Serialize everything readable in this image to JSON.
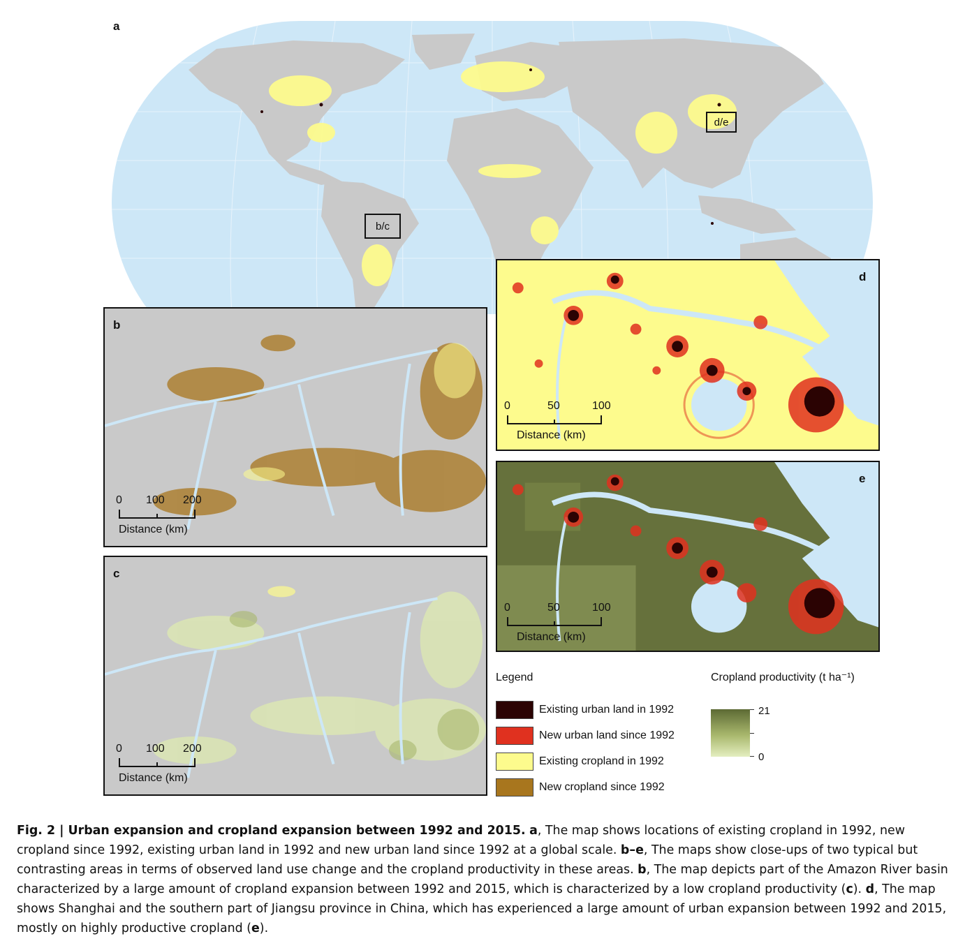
{
  "panels": {
    "a": {
      "label": "a",
      "region_boxes": [
        "d/e",
        "b/c"
      ]
    },
    "b": {
      "label": "b",
      "scale": {
        "ticks": [
          "0",
          "100",
          "200"
        ],
        "title": "Distance (km)"
      }
    },
    "c": {
      "label": "c",
      "scale": {
        "ticks": [
          "0",
          "100",
          "200"
        ],
        "title": "Distance (km)"
      }
    },
    "d": {
      "label": "d",
      "scale": {
        "ticks": [
          "0",
          "50",
          "100"
        ],
        "title": "Distance (km)"
      }
    },
    "e": {
      "label": "e",
      "scale": {
        "ticks": [
          "0",
          "50",
          "100"
        ],
        "title": "Distance (km)"
      }
    }
  },
  "legend": {
    "title": "Legend",
    "items": [
      {
        "label": "Existing urban land in 1992",
        "color": "#2b0303"
      },
      {
        "label": "New urban land since 1992",
        "color": "#e0311f"
      },
      {
        "label": "Existing cropland in 1992",
        "color": "#fdfb8d"
      },
      {
        "label": "New cropland since 1992",
        "color": "#a8761e"
      }
    ]
  },
  "productivity": {
    "title": "Cropland productivity (t ha⁻¹)",
    "max": "21",
    "min": "0"
  },
  "colors": {
    "ocean": "#cde7f7",
    "land": "#c9c9c9",
    "cropland": "#fdfb8d",
    "new_cropland": "#a8761e",
    "urban_old": "#2b0303",
    "urban_new": "#e0311f",
    "prod_high": "#5d6a34",
    "prod_low": "#e4eec0"
  },
  "caption": {
    "fig_label": "Fig. 2 | Urban expansion and cropland expansion between 1992 and 2015.",
    "a_key": "a",
    "a_text": ", The map shows locations of existing cropland in 1992, new cropland since 1992, existing urban land in 1992 and new urban land since 1992 at a global scale.",
    "be_key": "b–e",
    "be_text": ", The maps show close-ups of two typical but contrasting areas in terms of observed land use change and the cropland productivity in these areas.",
    "b_key": "b",
    "b_text": ", The map depicts part of the Amazon River basin characterized by a large amount of cropland expansion between 1992 and 2015, which is characterized by a low cropland productivity (",
    "c_key": "c",
    "c_text": ").",
    "d_key": "d",
    "d_text": ", The map shows Shanghai and the southern part of Jiangsu province in China, which has experienced a large amount of urban expansion between 1992 and 2015, mostly on highly productive cropland (",
    "e_key": "e",
    "e_text": ")."
  }
}
